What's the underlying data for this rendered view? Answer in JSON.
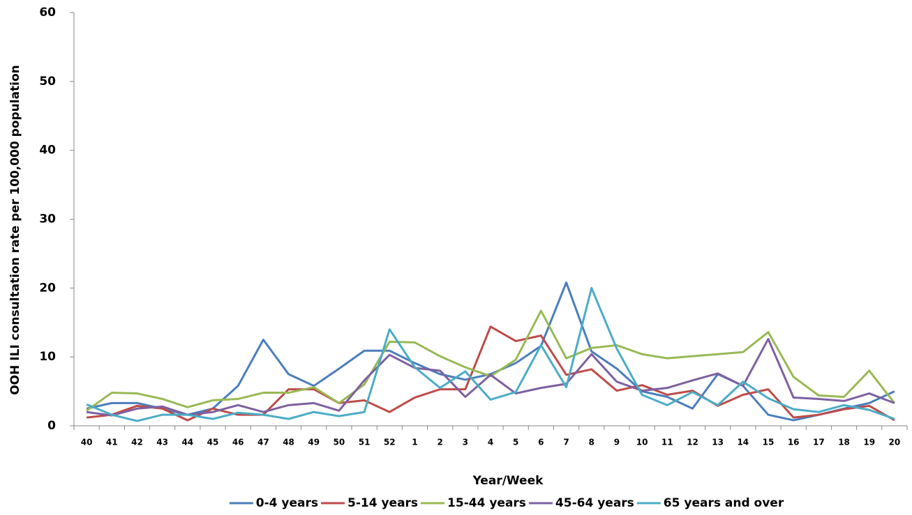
{
  "chart_data": {
    "type": "line",
    "y_label": "OOH ILI consultation rate per 100,000 population",
    "x_label": "Year/Week",
    "categories": [
      "40",
      "41",
      "42",
      "43",
      "44",
      "45",
      "46",
      "47",
      "48",
      "49",
      "50",
      "51",
      "52",
      "1",
      "2",
      "3",
      "4",
      "5",
      "6",
      "7",
      "8",
      "9",
      "10",
      "11",
      "12",
      "13",
      "14",
      "15",
      "16",
      "17",
      "18",
      "19",
      "20"
    ],
    "series": [
      {
        "name": "0-4 years",
        "color": "#4a7ebb",
        "values": [
          2.5,
          3.3,
          3.3,
          2.5,
          1.6,
          2.5,
          5.8,
          12.5,
          7.5,
          5.8,
          8.3,
          10.9,
          10.9,
          9.1,
          7.5,
          6.7,
          7.5,
          9.1,
          11.6,
          20.8,
          10.8,
          8.3,
          5.0,
          4.2,
          2.5,
          7.5,
          5.8,
          1.6,
          0.8,
          1.6,
          2.5,
          3.3,
          5.0
        ]
      },
      {
        "name": "5-14 years",
        "color": "#be4b48",
        "values": [
          1.2,
          1.6,
          2.9,
          2.5,
          0.8,
          2.5,
          1.6,
          1.6,
          5.3,
          5.3,
          3.3,
          3.7,
          2.0,
          4.1,
          5.3,
          5.3,
          14.4,
          12.3,
          13.1,
          7.4,
          8.2,
          5.1,
          5.9,
          4.5,
          5.1,
          2.9,
          4.5,
          5.3,
          1.2,
          1.6,
          2.4,
          2.9,
          0.8
        ]
      },
      {
        "name": "15-44 years",
        "color": "#98b954",
        "values": [
          2.2,
          4.8,
          4.7,
          3.9,
          2.7,
          3.7,
          3.9,
          4.8,
          4.8,
          5.6,
          3.3,
          6.0,
          12.2,
          12.1,
          10.1,
          8.5,
          7.2,
          9.6,
          16.7,
          9.8,
          11.3,
          11.7,
          10.4,
          9.8,
          10.1,
          10.4,
          10.7,
          13.6,
          7.1,
          4.4,
          4.2,
          8.0,
          3.3
        ]
      },
      {
        "name": "45-64 years",
        "color": "#7d60a0",
        "values": [
          2.0,
          1.5,
          2.5,
          2.8,
          1.6,
          2.0,
          3.0,
          2.0,
          3.0,
          3.3,
          2.2,
          6.6,
          10.3,
          8.4,
          8.0,
          4.2,
          7.4,
          4.7,
          5.5,
          6.1,
          10.4,
          6.4,
          5.1,
          5.5,
          6.6,
          7.6,
          5.8,
          12.6,
          4.1,
          3.9,
          3.6,
          4.7,
          3.3
        ]
      },
      {
        "name": "65 years and over",
        "color": "#4bacc6",
        "values": [
          3.1,
          1.6,
          0.7,
          1.6,
          1.6,
          1.0,
          1.9,
          1.6,
          1.0,
          2.0,
          1.4,
          2.0,
          14.0,
          8.5,
          5.5,
          7.9,
          3.8,
          4.9,
          11.7,
          5.6,
          20.0,
          11.2,
          4.5,
          3.0,
          4.9,
          3.0,
          6.4,
          4.0,
          2.4,
          2.0,
          3.0,
          2.3,
          1.0
        ]
      }
    ],
    "ylim": [
      0,
      60
    ],
    "yticks": [
      0,
      10,
      20,
      30,
      40,
      50,
      60
    ],
    "legend": "bottom"
  }
}
